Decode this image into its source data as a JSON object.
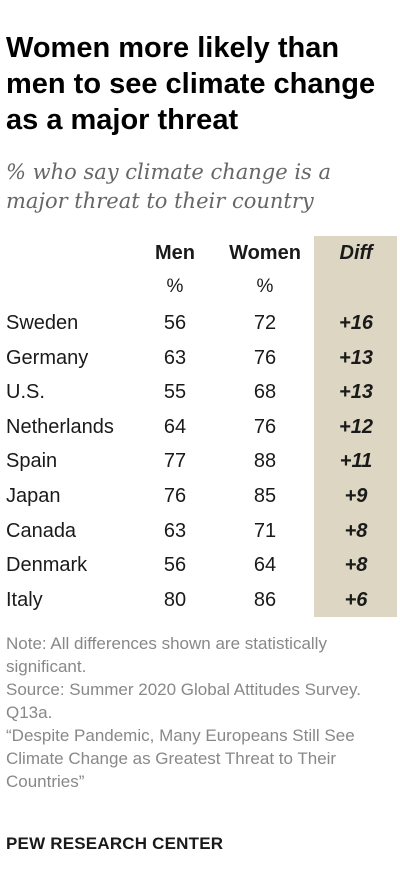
{
  "chart_data": {
    "type": "table",
    "title": "Women more likely than men to see climate change as a major threat",
    "subtitle": "% who say climate change is a major threat to their country",
    "columns": [
      "Men",
      "Women",
      "Diff"
    ],
    "units": [
      "%",
      "%"
    ],
    "rows": [
      {
        "country": "Sweden",
        "men": "56",
        "women": "72",
        "diff": "+16"
      },
      {
        "country": "Germany",
        "men": "63",
        "women": "76",
        "diff": "+13"
      },
      {
        "country": "U.S.",
        "men": "55",
        "women": "68",
        "diff": "+13"
      },
      {
        "country": "Netherlands",
        "men": "64",
        "women": "76",
        "diff": "+12"
      },
      {
        "country": "Spain",
        "men": "77",
        "women": "88",
        "diff": "+11"
      },
      {
        "country": "Japan",
        "men": "76",
        "women": "85",
        "diff": "+9"
      },
      {
        "country": "Canada",
        "men": "63",
        "women": "71",
        "diff": "+8"
      },
      {
        "country": "Denmark",
        "men": "56",
        "women": "64",
        "diff": "+8"
      },
      {
        "country": "Italy",
        "men": "80",
        "women": "86",
        "diff": "+6"
      }
    ],
    "highlight_color": "#dcd6c3"
  },
  "notes": {
    "note": "Note: All differences shown are statistically significant.",
    "source": "Source: Summer 2020 Global Attitudes Survey. Q13a.",
    "report": "“Despite Pandemic, Many Europeans Still See Climate Change as Greatest Threat to Their Countries”"
  },
  "brand": "PEW RESEARCH CENTER"
}
